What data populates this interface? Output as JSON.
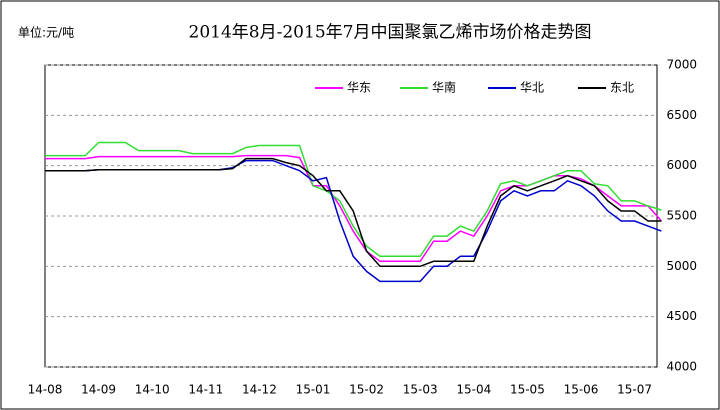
{
  "chart_data": {
    "type": "line",
    "title": "2014年8月-2015年7月中国聚氯乙烯市场价格走势图",
    "unit_label": "单位:元/吨",
    "categories": [
      "14-08",
      null,
      null,
      null,
      "14-09",
      null,
      null,
      null,
      "14-10",
      null,
      null,
      null,
      "14-11",
      null,
      null,
      null,
      "14-12",
      null,
      null,
      null,
      "15-01",
      null,
      null,
      null,
      "15-02",
      null,
      null,
      null,
      "15-03",
      null,
      null,
      null,
      "15-04",
      null,
      null,
      null,
      "15-05",
      null,
      null,
      null,
      "15-06",
      null,
      null,
      null,
      "15-07",
      null,
      null
    ],
    "series": [
      {
        "name": "华东",
        "color": "#ff00ff",
        "values": [
          6070,
          6070,
          6070,
          6070,
          6090,
          6090,
          6090,
          6090,
          6090,
          6090,
          6090,
          6090,
          6090,
          6090,
          6090,
          6100,
          6100,
          6100,
          6100,
          6080,
          5800,
          5800,
          5600,
          5350,
          5150,
          5050,
          5050,
          5050,
          5050,
          5250,
          5250,
          5350,
          5300,
          5500,
          5750,
          5800,
          5800,
          5850,
          5900,
          5900,
          5870,
          5800,
          5700,
          5600,
          5600,
          5600,
          5450
        ]
      },
      {
        "name": "华南",
        "color": "#33dd33",
        "values": [
          6100,
          6100,
          6100,
          6100,
          6230,
          6230,
          6230,
          6150,
          6150,
          6150,
          6150,
          6120,
          6120,
          6120,
          6120,
          6180,
          6200,
          6200,
          6200,
          6200,
          5800,
          5750,
          5650,
          5400,
          5200,
          5100,
          5100,
          5100,
          5100,
          5300,
          5300,
          5400,
          5350,
          5550,
          5820,
          5850,
          5800,
          5850,
          5900,
          5950,
          5950,
          5820,
          5800,
          5650,
          5650,
          5600,
          5560
        ]
      },
      {
        "name": "华北",
        "color": "#0000cc",
        "values": [
          5950,
          5950,
          5950,
          5950,
          5960,
          5960,
          5960,
          5960,
          5960,
          5960,
          5960,
          5960,
          5960,
          5960,
          5980,
          6050,
          6050,
          6050,
          6000,
          5950,
          5850,
          5880,
          5450,
          5100,
          4950,
          4850,
          4850,
          4850,
          4850,
          5000,
          5000,
          5100,
          5100,
          5350,
          5650,
          5750,
          5700,
          5750,
          5750,
          5850,
          5800,
          5700,
          5550,
          5450,
          5450,
          5400,
          5350
        ]
      },
      {
        "name": "东北",
        "color": "#000000",
        "values": [
          5950,
          5950,
          5950,
          5950,
          5960,
          5960,
          5960,
          5960,
          5960,
          5960,
          5960,
          5960,
          5960,
          5960,
          5970,
          6070,
          6070,
          6070,
          6030,
          6000,
          5900,
          5750,
          5750,
          5550,
          5150,
          5000,
          5000,
          5000,
          5000,
          5050,
          5050,
          5050,
          5050,
          5400,
          5700,
          5800,
          5750,
          5800,
          5850,
          5900,
          5850,
          5800,
          5650,
          5550,
          5550,
          5450,
          5450
        ]
      }
    ],
    "ylim": [
      4000,
      7000
    ],
    "yticks": [
      4000,
      4500,
      5000,
      5500,
      6000,
      6500,
      7000
    ],
    "grid": true,
    "legend": "upper right"
  }
}
